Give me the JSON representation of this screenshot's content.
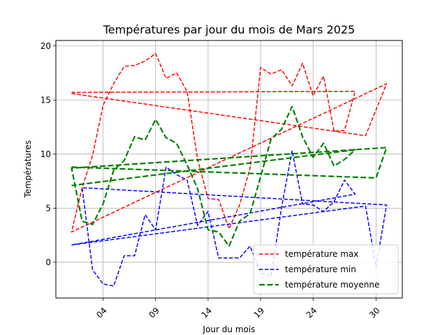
{
  "chart_data": {
    "type": "line",
    "title": "Températures par jour du mois de Mars 2025",
    "xlabel": "Jour du mois",
    "ylabel": "Températures",
    "xlim": [
      -0.5,
      32.5
    ],
    "ylim": [
      -3.3,
      20.5
    ],
    "xticks": [
      4,
      9,
      14,
      19,
      24,
      30
    ],
    "xtick_labels": [
      "04",
      "09",
      "14",
      "19",
      "24",
      "30"
    ],
    "yticks": [
      0,
      5,
      10,
      15,
      20
    ],
    "ytick_labels": [
      "0",
      "5",
      "10",
      "15",
      "20"
    ],
    "grid": true,
    "legend_position": "lower-right",
    "series": [
      {
        "name": "température max",
        "color": "#ff0000",
        "dash": "dashed",
        "points": [
          [
            1,
            15.6
          ],
          [
            29,
            11.7
          ],
          [
            31,
            16.5
          ],
          [
            1,
            2.8
          ],
          [
            2,
            6.9
          ],
          [
            3,
            9.9
          ],
          [
            4,
            14.5
          ],
          [
            5,
            16.5
          ],
          [
            6,
            18.1
          ],
          [
            7,
            18.2
          ],
          [
            8,
            18.6
          ],
          [
            9,
            19.3
          ],
          [
            10,
            17.0
          ],
          [
            11,
            17.5
          ],
          [
            12,
            15.8
          ],
          [
            13,
            9.5
          ],
          [
            14,
            5.9
          ],
          [
            15,
            5.8
          ],
          [
            16,
            3.1
          ],
          [
            17,
            5.3
          ],
          [
            18,
            8.7
          ],
          [
            19,
            18.0
          ],
          [
            20,
            17.4
          ],
          [
            21,
            17.8
          ],
          [
            22,
            16.3
          ],
          [
            23,
            18.4
          ],
          [
            24,
            15.4
          ],
          [
            25,
            17.2
          ],
          [
            26,
            12.1
          ],
          [
            27,
            12.2
          ],
          [
            28,
            15.8
          ],
          [
            1,
            15.7
          ]
        ]
      },
      {
        "name": "température min",
        "color": "#0000ff",
        "dash": "dashed",
        "points": [
          [
            1,
            1.6
          ],
          [
            29,
            5.2
          ],
          [
            30,
            -0.4
          ],
          [
            31,
            5.3
          ],
          [
            2,
            6.9
          ],
          [
            3,
            -0.7
          ],
          [
            4,
            -2.0
          ],
          [
            5,
            -2.2
          ],
          [
            6,
            0.6
          ],
          [
            7,
            0.6
          ],
          [
            8,
            4.4
          ],
          [
            9,
            3.0
          ],
          [
            10,
            8.8
          ],
          [
            11,
            8.1
          ],
          [
            12,
            7.6
          ],
          [
            13,
            3.4
          ],
          [
            14,
            4.7
          ],
          [
            15,
            0.4
          ],
          [
            16,
            0.4
          ],
          [
            17,
            0.4
          ],
          [
            18,
            1.5
          ],
          [
            19,
            -1.0
          ],
          [
            20,
            -1.3
          ],
          [
            21,
            5.1
          ],
          [
            22,
            10.3
          ],
          [
            23,
            5.4
          ],
          [
            24,
            5.3
          ],
          [
            25,
            4.7
          ],
          [
            26,
            5.6
          ],
          [
            27,
            7.6
          ],
          [
            28,
            6.3
          ],
          [
            1,
            1.6
          ]
        ]
      },
      {
        "name": "température moyenne",
        "color": "#008000",
        "dash": "dashed-bold",
        "points": [
          [
            1,
            8.8
          ],
          [
            30,
            7.8
          ],
          [
            31,
            10.6
          ],
          [
            1,
            8.7
          ],
          [
            2,
            3.8
          ],
          [
            3,
            3.5
          ],
          [
            4,
            5.4
          ],
          [
            5,
            8.5
          ],
          [
            6,
            9.4
          ],
          [
            7,
            11.6
          ],
          [
            8,
            11.3
          ],
          [
            9,
            13.2
          ],
          [
            10,
            11.5
          ],
          [
            11,
            11.0
          ],
          [
            12,
            9.0
          ],
          [
            13,
            6.8
          ],
          [
            14,
            3.0
          ],
          [
            15,
            2.8
          ],
          [
            16,
            1.5
          ],
          [
            17,
            3.8
          ],
          [
            18,
            4.5
          ],
          [
            19,
            7.9
          ],
          [
            20,
            11.4
          ],
          [
            21,
            12.3
          ],
          [
            22,
            14.4
          ],
          [
            23,
            11.6
          ],
          [
            24,
            9.7
          ],
          [
            25,
            11.0
          ],
          [
            26,
            8.9
          ],
          [
            27,
            9.5
          ],
          [
            28,
            10.4
          ],
          [
            1,
            7.1
          ]
        ]
      }
    ]
  }
}
